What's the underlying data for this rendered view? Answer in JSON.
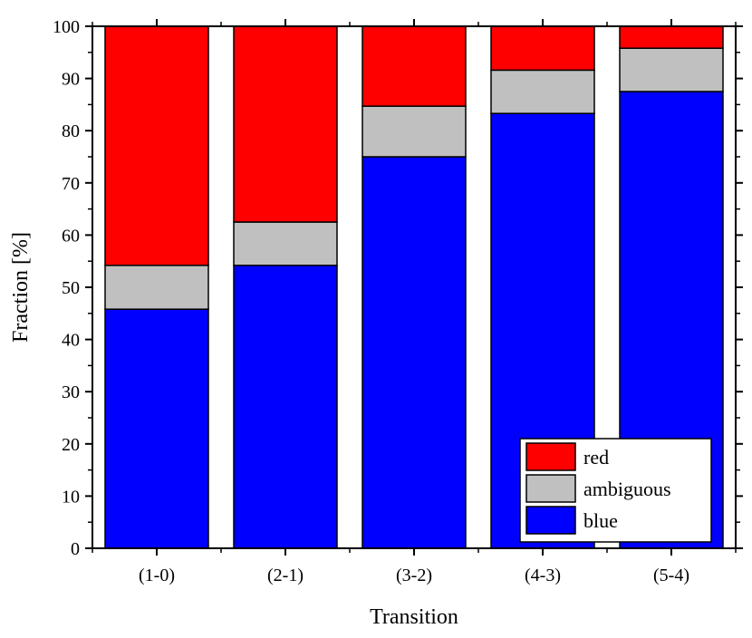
{
  "chart_data": {
    "type": "bar",
    "stacked": true,
    "categories": [
      "(1-0)",
      "(2-1)",
      "(3-2)",
      "(4-3)",
      "(5-4)"
    ],
    "series": [
      {
        "name": "blue",
        "color": "#0000ff",
        "values": [
          45.8,
          54.2,
          75.0,
          83.3,
          87.5
        ]
      },
      {
        "name": "ambiguous",
        "color": "#c0c0c0",
        "values": [
          8.4,
          8.3,
          9.7,
          8.3,
          8.3
        ]
      },
      {
        "name": "red",
        "color": "#ff0000",
        "values": [
          45.8,
          37.5,
          15.3,
          8.4,
          4.2
        ]
      }
    ],
    "xlabel": "Transition",
    "ylabel": "Fraction [%]",
    "ylim": [
      0,
      100
    ],
    "yticks": [
      0,
      10,
      20,
      30,
      40,
      50,
      60,
      70,
      80,
      90,
      100
    ],
    "grid": false,
    "legend": {
      "position": "bottom-right",
      "order": [
        "red",
        "ambiguous",
        "blue"
      ]
    }
  }
}
